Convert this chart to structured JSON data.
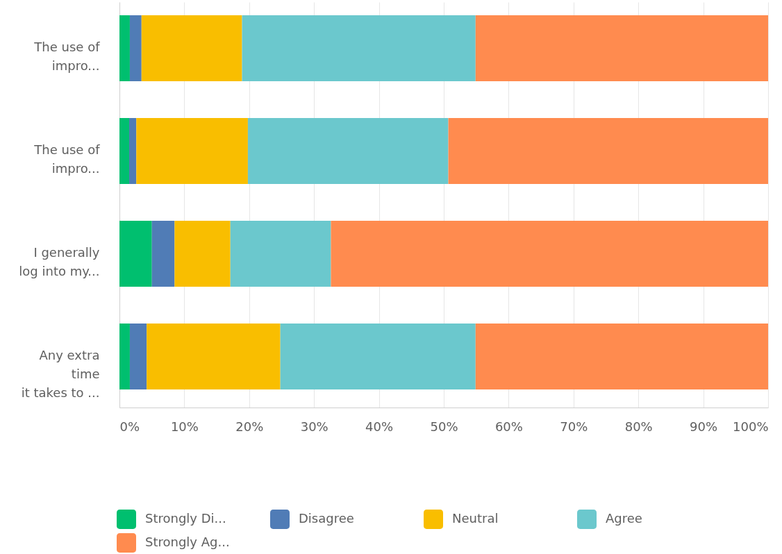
{
  "chart_data": {
    "type": "bar",
    "orientation": "horizontal",
    "stacked": true,
    "categories": [
      "The use of\nimpro...",
      "The use of\nimpro...",
      "I generally\nlog into my...",
      "Any extra\ntime\nit takes to ..."
    ],
    "series": [
      {
        "name": "Strongly Di...",
        "color": "#00bf6f",
        "values": [
          1.6,
          1.5,
          5.0,
          1.6
        ]
      },
      {
        "name": "Disagree",
        "color": "#507cb6",
        "values": [
          1.8,
          1.1,
          3.5,
          2.6
        ]
      },
      {
        "name": "Neutral",
        "color": "#f9be00",
        "values": [
          15.5,
          17.2,
          8.6,
          20.6
        ]
      },
      {
        "name": "Agree",
        "color": "#6bc8cd",
        "values": [
          36.0,
          30.9,
          15.5,
          30.1
        ]
      },
      {
        "name": "Strongly Ag...",
        "color": "#ff8b4f",
        "values": [
          45.1,
          49.3,
          67.4,
          45.1
        ]
      }
    ],
    "xlim": [
      0,
      100
    ],
    "xticks": [
      {
        "value": 0,
        "label": "0%"
      },
      {
        "value": 10,
        "label": "10%"
      },
      {
        "value": 20,
        "label": "20%"
      },
      {
        "value": 30,
        "label": "30%"
      },
      {
        "value": 40,
        "label": "40%"
      },
      {
        "value": 50,
        "label": "50%"
      },
      {
        "value": 60,
        "label": "60%"
      },
      {
        "value": 70,
        "label": "70%"
      },
      {
        "value": 80,
        "label": "80%"
      },
      {
        "value": 90,
        "label": "90%"
      },
      {
        "value": 100,
        "label": "100%"
      }
    ],
    "grid": "x",
    "legend": "bottom"
  }
}
